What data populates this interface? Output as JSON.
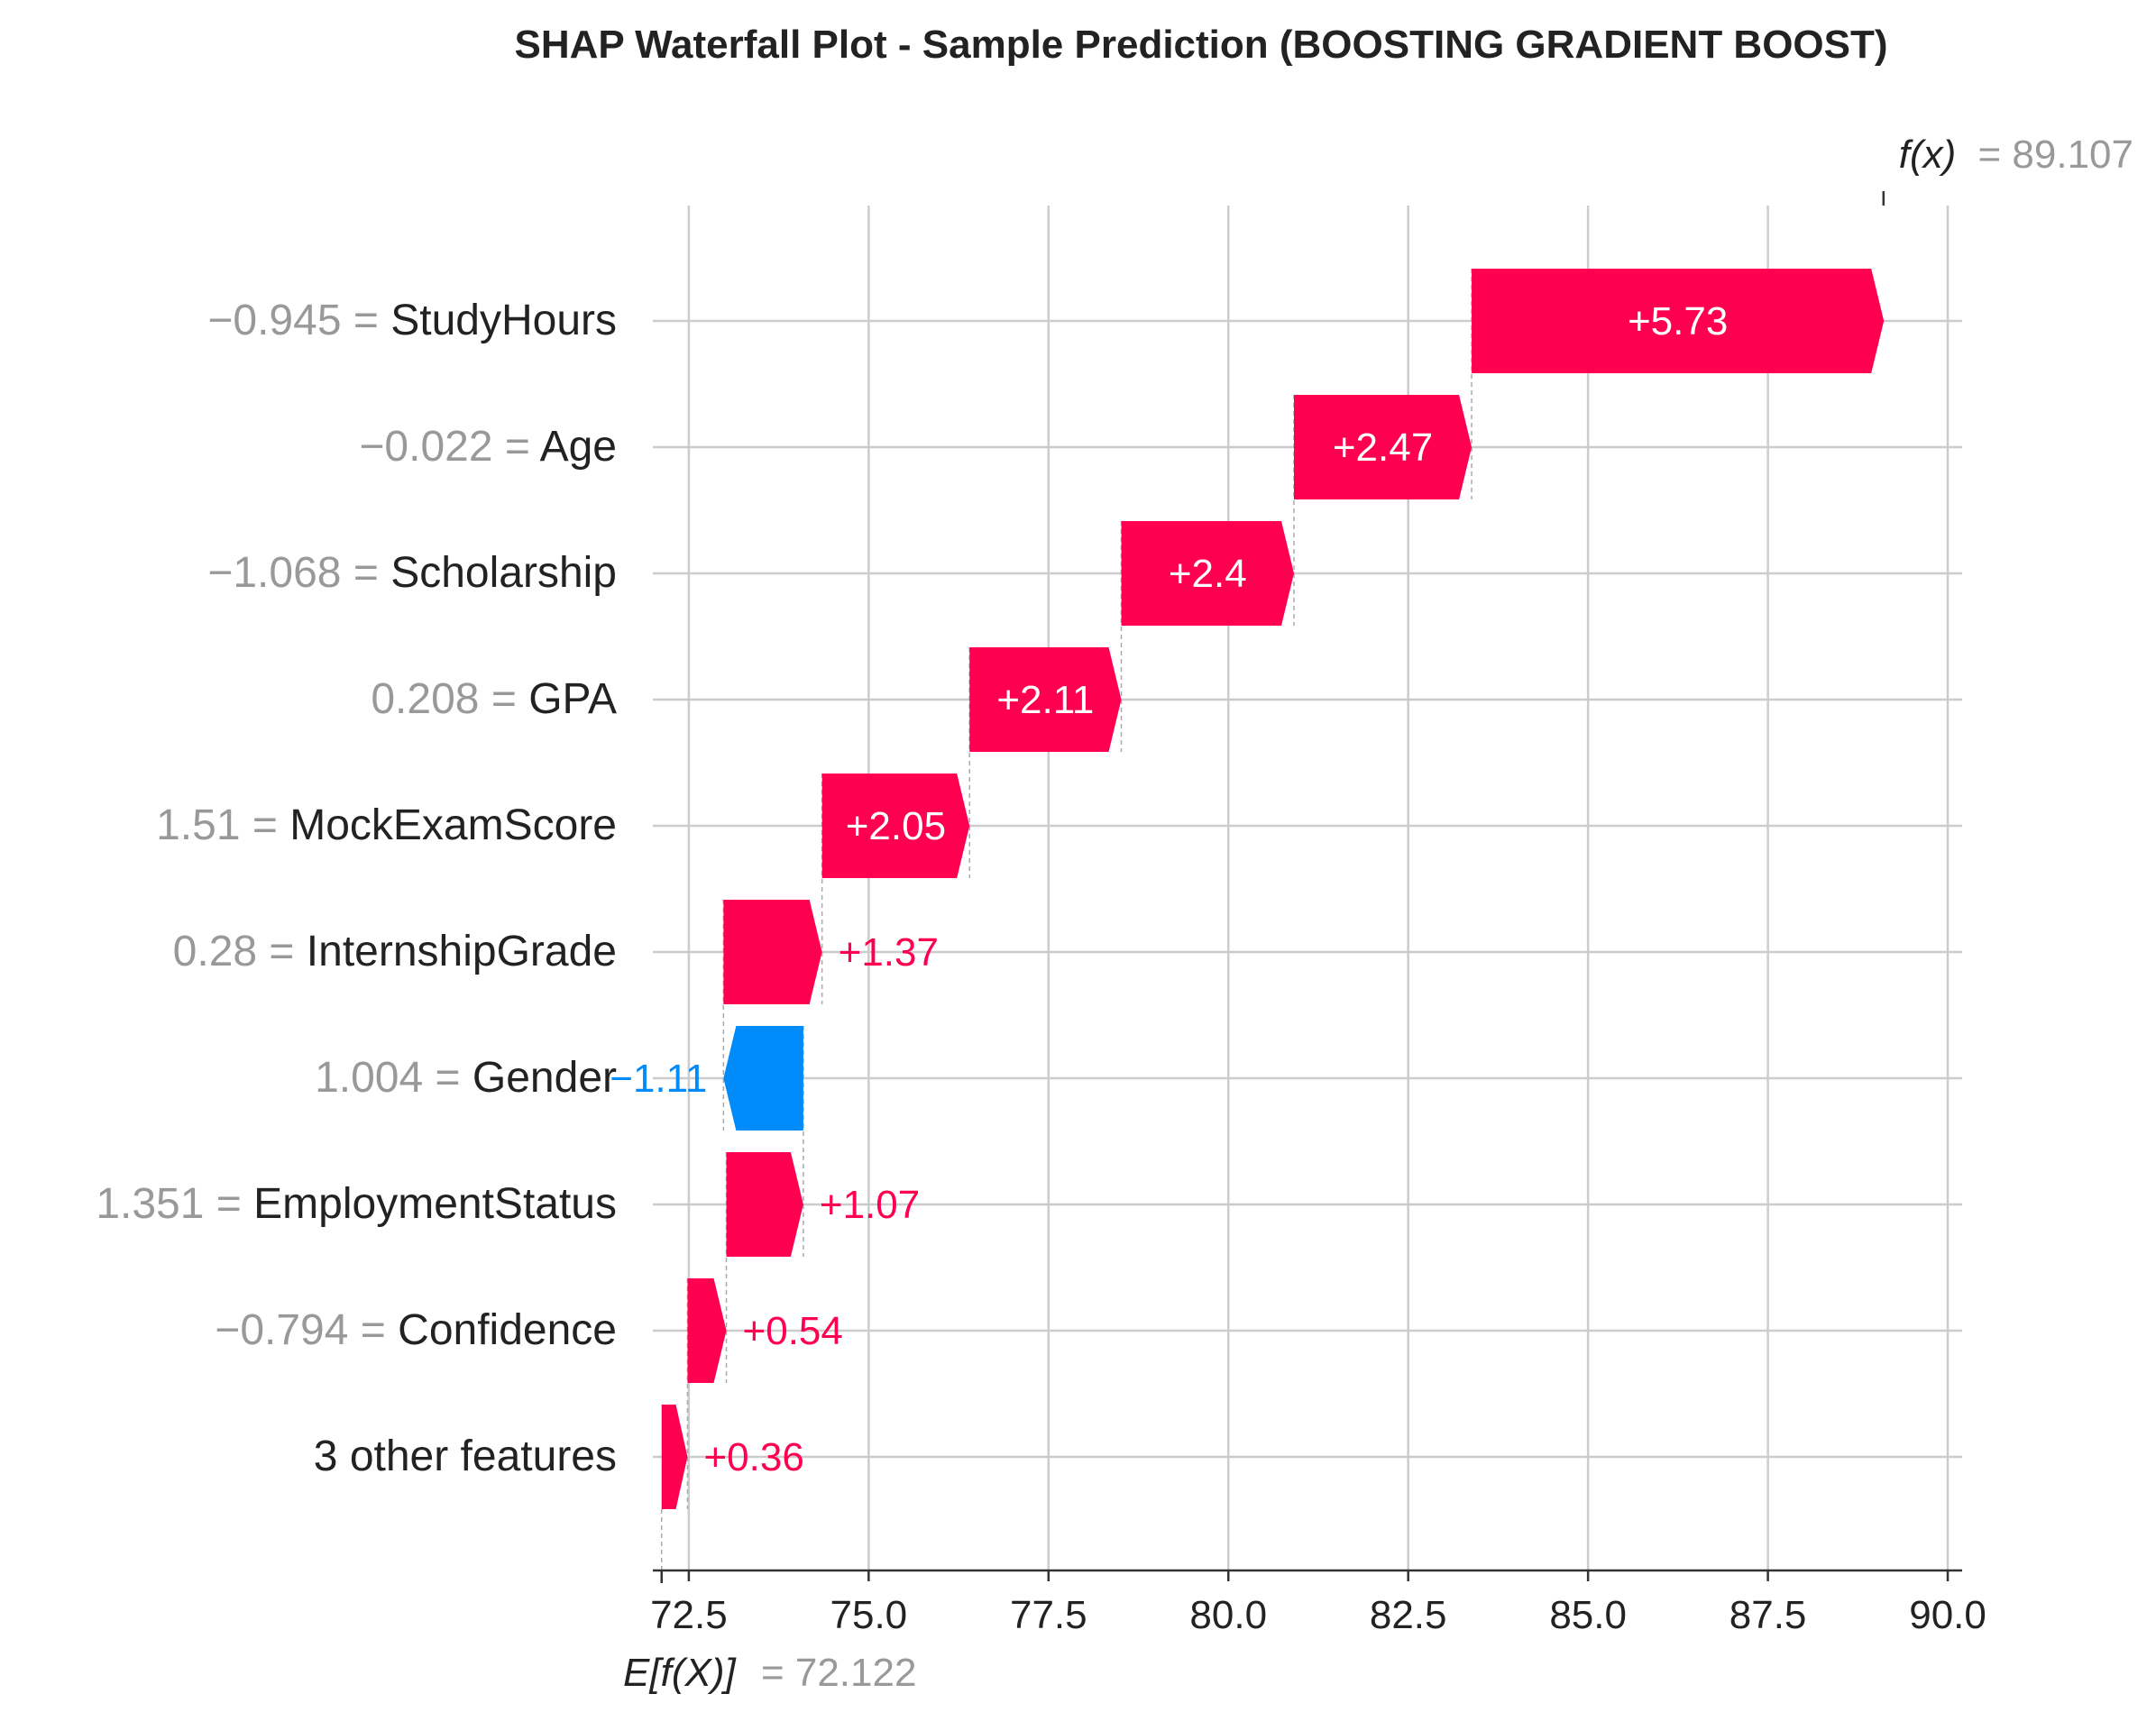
{
  "chart_data": {
    "type": "waterfall",
    "title": "SHAP Waterfall Plot - Sample Prediction (BOOSTING GRADIENT BOOST)",
    "xlim": [
      72.0,
      90.2
    ],
    "x_ticks": [
      "72.5",
      "75.0",
      "77.5",
      "80.0",
      "82.5",
      "85.0",
      "87.5",
      "90.0"
    ],
    "base_value": 72.122,
    "base_label_expr": "E[f(X)]",
    "base_label_value": "= 72.122",
    "output_value": 89.107,
    "output_label_expr": "f(x)",
    "output_label_value": "= 89.107",
    "grid": true,
    "colors": {
      "positive": "#ff0051",
      "negative": "#008bfb",
      "value_text": "#999999",
      "feature_text": "#222222",
      "grid": "#cccccc"
    },
    "features": [
      {
        "value": "−0.945",
        "name": "StudyHours",
        "shap": 5.73,
        "label": "+5.73"
      },
      {
        "value": "−0.022",
        "name": "Age",
        "shap": 2.47,
        "label": "+2.47"
      },
      {
        "value": "−1.068",
        "name": "Scholarship",
        "shap": 2.4,
        "label": "+2.4"
      },
      {
        "value": "0.208",
        "name": "GPA",
        "shap": 2.11,
        "label": "+2.11"
      },
      {
        "value": "1.51",
        "name": "MockExamScore",
        "shap": 2.05,
        "label": "+2.05"
      },
      {
        "value": "0.28",
        "name": "InternshipGrade",
        "shap": 1.37,
        "label": "+1.37"
      },
      {
        "value": "1.004",
        "name": "Gender",
        "shap": -1.11,
        "label": "−1.11"
      },
      {
        "value": "1.351",
        "name": "EmploymentStatus",
        "shap": 1.07,
        "label": "+1.07"
      },
      {
        "value": "−0.794",
        "name": "Confidence",
        "shap": 0.54,
        "label": "+0.54"
      },
      {
        "value": "",
        "name": "3 other features",
        "shap": 0.36,
        "label": "+0.36"
      }
    ]
  }
}
